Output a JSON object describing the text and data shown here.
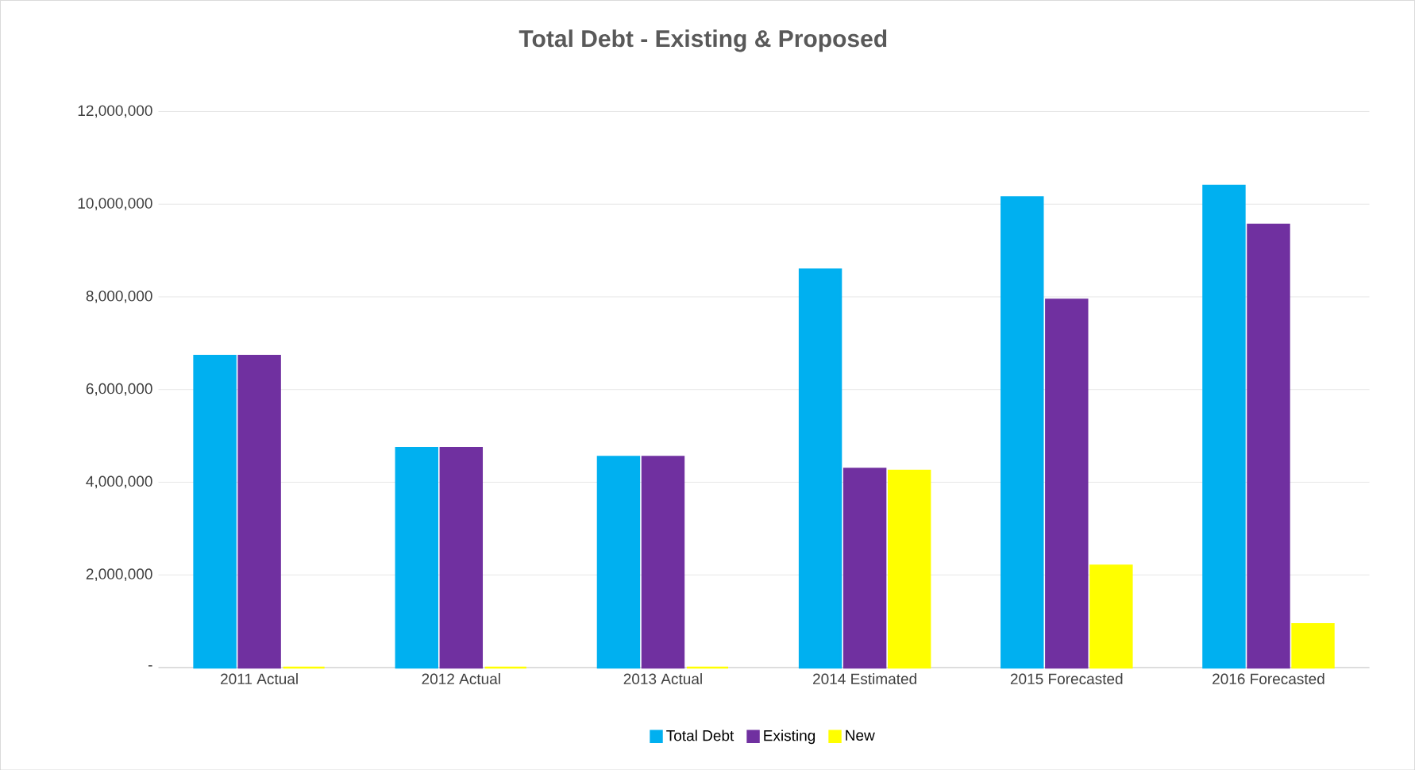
{
  "chart_data": {
    "type": "bar",
    "title": "Total Debt - Existing & Proposed",
    "categories": [
      "2011 Actual",
      "2012 Actual",
      "2013 Actual",
      "2014 Estimated",
      "2015 Forecasted",
      "2016 Forecasted"
    ],
    "series": [
      {
        "name": "Total Debt",
        "color": "#00b0f0",
        "values": [
          6730000,
          4740000,
          4550000,
          8590000,
          10150000,
          10400000
        ]
      },
      {
        "name": "Existing",
        "color": "#7030a0",
        "values": [
          6730000,
          4740000,
          4550000,
          4290000,
          7940000,
          9560000
        ]
      },
      {
        "name": "New",
        "color": "#ffff00",
        "values": [
          0,
          0,
          0,
          4250000,
          2200000,
          940000
        ]
      }
    ],
    "ylim": [
      0,
      12000000
    ],
    "yticks": [
      {
        "value": 0,
        "label": "-"
      },
      {
        "value": 2000000,
        "label": "2,000,000"
      },
      {
        "value": 4000000,
        "label": "4,000,000"
      },
      {
        "value": 6000000,
        "label": "6,000,000"
      },
      {
        "value": 8000000,
        "label": "8,000,000"
      },
      {
        "value": 10000000,
        "label": "10,000,000"
      },
      {
        "value": 12000000,
        "label": "12,000,000"
      }
    ],
    "grid": "y",
    "legend": "bottom"
  }
}
